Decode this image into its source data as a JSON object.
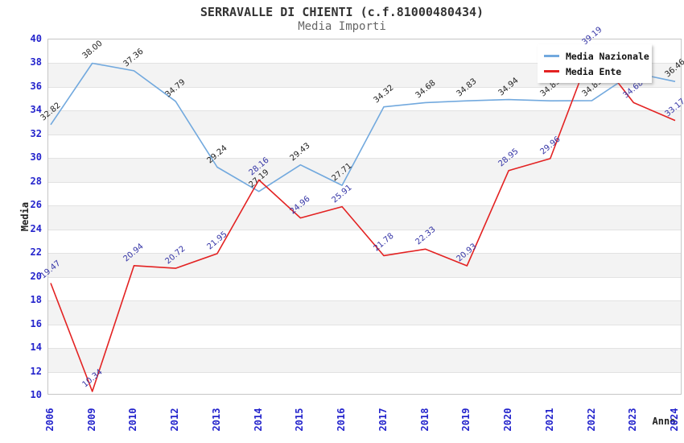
{
  "chart_data": {
    "type": "line",
    "title": "SERRAVALLE DI CHIENTI (c.f.81000480434)",
    "subtitle": "Media Importi",
    "xlabel": "Anno",
    "ylabel": "Media",
    "ylim": [
      10,
      40
    ],
    "ytick_step": 2,
    "grid": "horizontal gridlines every 2 units with alternating gray bands",
    "legend_position": "top-right",
    "axis_tick_color": "#2424cc",
    "categories": [
      "2006",
      "2009",
      "2010",
      "2012",
      "2013",
      "2014",
      "2015",
      "2016",
      "2017",
      "2018",
      "2019",
      "2020",
      "2021",
      "2022",
      "2023",
      "2024"
    ],
    "series": [
      {
        "name": "Media Nazionale",
        "color": "#72a9de",
        "label_color": "#222222",
        "values": [
          32.82,
          38.0,
          37.36,
          34.79,
          29.24,
          27.19,
          29.43,
          27.71,
          34.32,
          34.68,
          34.83,
          34.94,
          34.83,
          34.85,
          37.19,
          36.46
        ],
        "labels": [
          "32.82",
          "38.00",
          "37.36",
          "34.79",
          "29.24",
          "27.19",
          "29.43",
          "27.71",
          "34.32",
          "34.68",
          "34.83",
          "34.94",
          "34.83",
          "34.85",
          "",
          "36.46"
        ]
      },
      {
        "name": "Media Ente",
        "color": "#e32222",
        "label_color": "#3434a6",
        "values": [
          19.47,
          10.34,
          20.94,
          20.72,
          21.95,
          28.16,
          24.96,
          25.91,
          21.78,
          22.33,
          20.93,
          28.95,
          29.96,
          39.19,
          34.68,
          33.17
        ],
        "labels": [
          "19.47",
          "10.34",
          "20.94",
          "20.72",
          "21.95",
          "28.16",
          "24.96",
          "25.91",
          "21.78",
          "22.33",
          "20.93",
          "28.95",
          "29.96",
          "39.19",
          "34.68",
          "33.17"
        ]
      }
    ]
  },
  "legend": {
    "items": [
      {
        "label": "Media Nazionale"
      },
      {
        "label": "Media Ente"
      }
    ]
  }
}
